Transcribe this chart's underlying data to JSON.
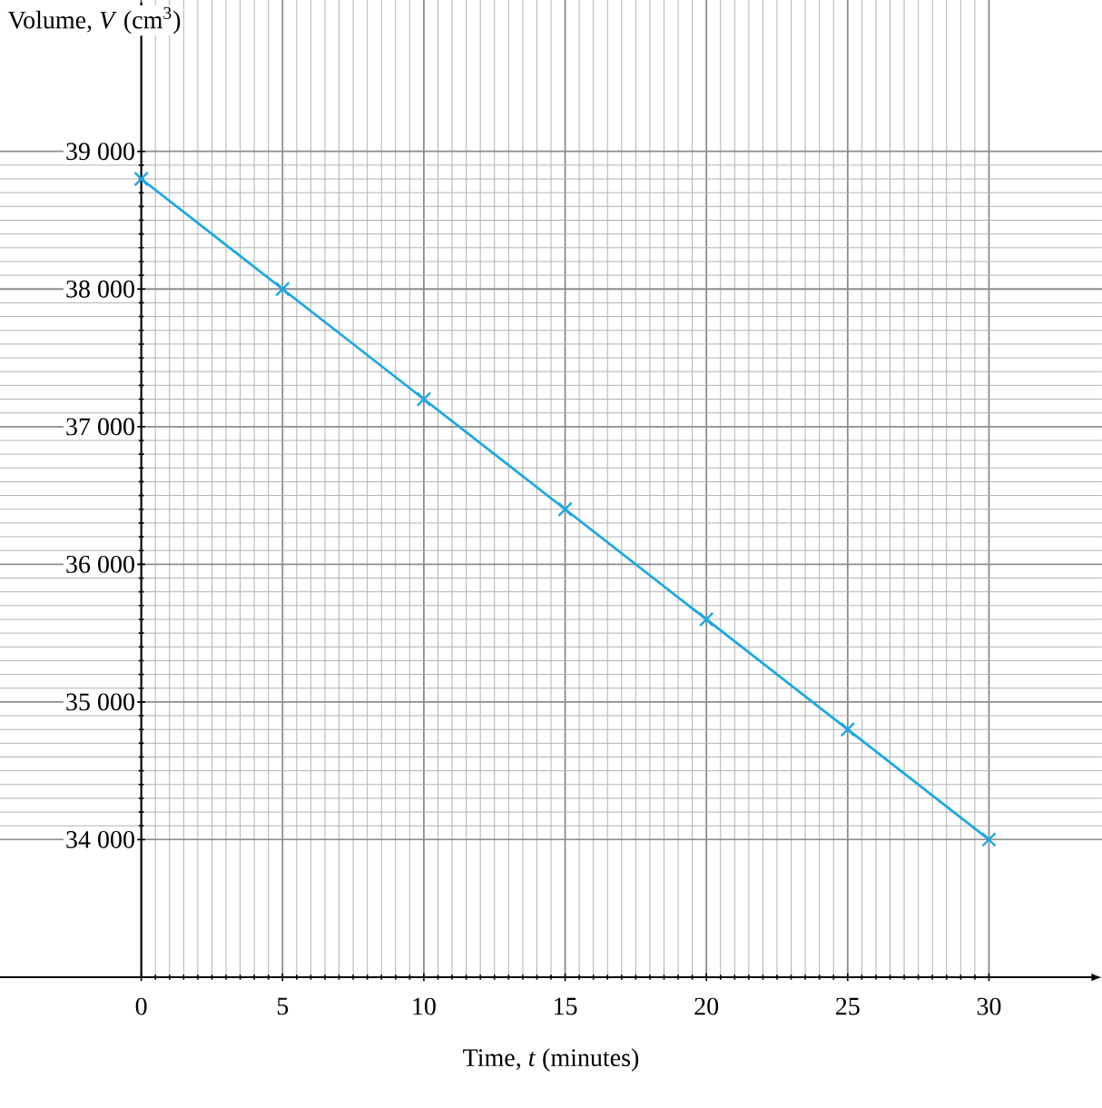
{
  "chart_data": {
    "type": "line",
    "xlabel": "Time, *t* (minutes)",
    "ylabel": "Volume, *V* (cm$^{3}$)",
    "x": [
      0,
      5,
      10,
      15,
      20,
      25,
      30
    ],
    "series": [
      {
        "color": "#1ba8e2",
        "values": [
          38800,
          38000,
          37200,
          36400,
          35600,
          34800,
          34000
        ]
      }
    ],
    "xlim": [
      -5,
      34
    ],
    "ylim": [
      33000,
      40100
    ],
    "xticks": [
      0,
      5,
      10,
      15,
      20,
      25,
      30
    ],
    "yticks": [
      {
        "value": 34000,
        "label": "34 000"
      },
      {
        "value": 35000,
        "label": "35 000"
      },
      {
        "value": 36000,
        "label": "36 000"
      },
      {
        "value": 37000,
        "label": "37 000"
      },
      {
        "value": 38000,
        "label": "38 000"
      },
      {
        "value": 39000,
        "label": "39 000"
      }
    ],
    "grid": true,
    "marker": "cross",
    "line_style": "solid"
  }
}
